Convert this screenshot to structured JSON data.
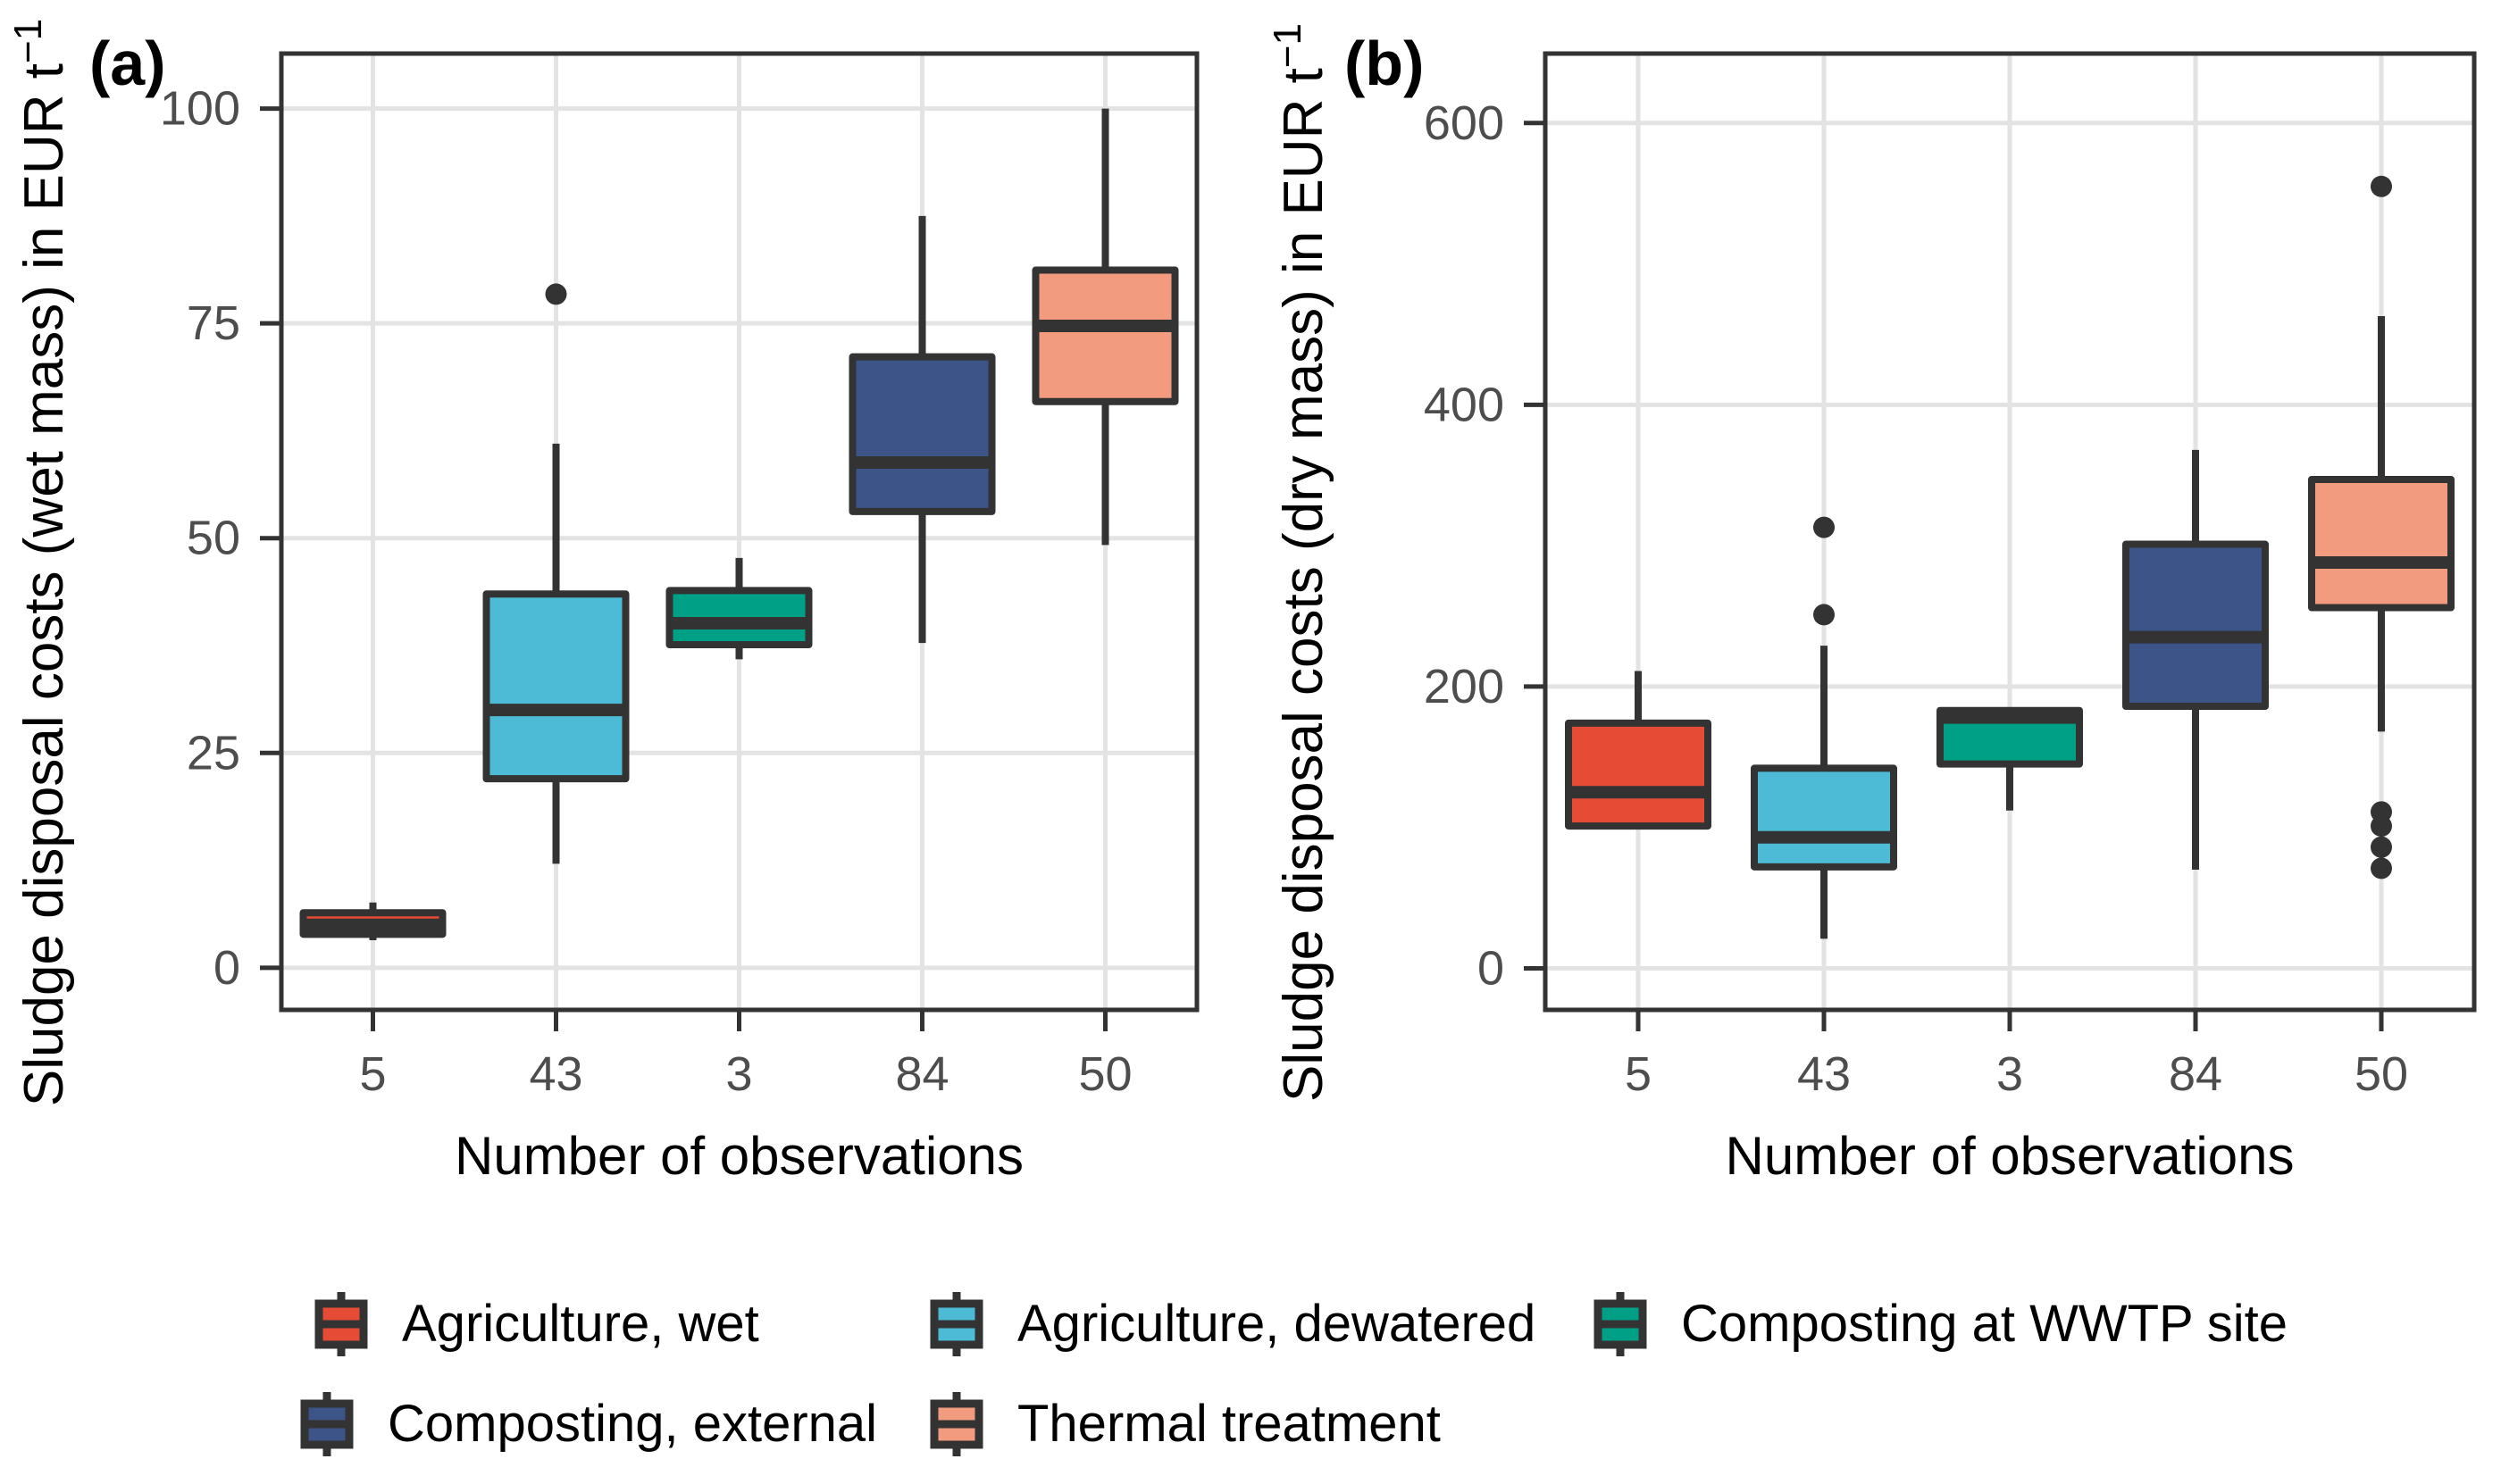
{
  "figure": {
    "background": "#FFFFFF"
  },
  "chart_data": [
    {
      "type": "boxplot",
      "panel_tag": "(a)",
      "xlabel": "Number of observations",
      "ylabel": "Sludge disposal costs (wet mass) in EUR t⁻¹",
      "ylabel_base": "Sludge disposal costs (wet mass) in EUR t",
      "ylabel_sup": "−1",
      "categories": [
        "5",
        "43",
        "3",
        "84",
        "50"
      ],
      "y_ticks": [
        0,
        25,
        50,
        75,
        100
      ],
      "ylim": [
        -4.9,
        106.4
      ],
      "grid": true,
      "series": [
        {
          "name": "Agriculture, wet",
          "color": "#E64B35",
          "low": 3.2,
          "q1": 3.9,
          "median": 5.0,
          "q3": 6.4,
          "high": 7.6,
          "outliers": []
        },
        {
          "name": "Agriculture, dewatered",
          "color": "#4DBBD5",
          "low": 12.1,
          "q1": 22.0,
          "median": 30.0,
          "q3": 43.5,
          "high": 61.0,
          "outliers": [
            78.4
          ]
        },
        {
          "name": "Composting at WWTP site",
          "color": "#00A087",
          "low": 35.9,
          "q1": 37.6,
          "median": 40.1,
          "q3": 43.9,
          "high": 47.7,
          "outliers": []
        },
        {
          "name": "Composting, external",
          "color": "#3C5488",
          "low": 37.8,
          "q1": 53.1,
          "median": 58.8,
          "q3": 71.1,
          "high": 87.5,
          "outliers": []
        },
        {
          "name": "Thermal treatment",
          "color": "#F39B7F",
          "low": 49.2,
          "q1": 65.9,
          "median": 74.7,
          "q3": 81.2,
          "high": 100.0,
          "outliers": []
        }
      ]
    },
    {
      "type": "boxplot",
      "panel_tag": "(b)",
      "xlabel": "Number of observations",
      "ylabel": "Sludge disposal costs (dry mass) in EUR t⁻¹",
      "ylabel_base": "Sludge disposal costs (dry mass) in EUR t",
      "ylabel_sup": "−1",
      "categories": [
        "5",
        "43",
        "3",
        "84",
        "50"
      ],
      "y_ticks": [
        0,
        200,
        400,
        600
      ],
      "ylim": [
        -29.5,
        649.3
      ],
      "grid": true,
      "series": [
        {
          "name": "Agriculture, wet",
          "color": "#E64B35",
          "low": 101,
          "q1": 101,
          "median": 125,
          "q3": 174,
          "high": 211,
          "outliers": []
        },
        {
          "name": "Agriculture, dewatered",
          "color": "#4DBBD5",
          "low": 21,
          "q1": 72,
          "median": 93,
          "q3": 142,
          "high": 229,
          "outliers": [
            251,
            313
          ]
        },
        {
          "name": "Composting at WWTP site",
          "color": "#00A087",
          "low": 112,
          "q1": 145,
          "median": 178,
          "q3": 183,
          "high": 184,
          "outliers": []
        },
        {
          "name": "Composting, external",
          "color": "#3C5488",
          "low": 70,
          "q1": 186,
          "median": 235,
          "q3": 301,
          "high": 368,
          "outliers": []
        },
        {
          "name": "Thermal treatment",
          "color": "#F39B7F",
          "low": 168,
          "q1": 256,
          "median": 288,
          "q3": 347,
          "high": 463,
          "outliers": [
            555,
            111,
            101,
            86,
            71
          ]
        }
      ]
    }
  ],
  "legend": {
    "items": [
      {
        "label": "Agriculture, wet",
        "color": "#E64B35"
      },
      {
        "label": "Agriculture, dewatered",
        "color": "#4DBBD5"
      },
      {
        "label": "Composting at WWTP site",
        "color": "#00A087"
      },
      {
        "label": "Composting, external",
        "color": "#3C5488"
      },
      {
        "label": "Thermal treatment",
        "color": "#F39B7F"
      }
    ]
  },
  "colors": {
    "stroke": "#333333",
    "grid": "#E3E3E3",
    "tick_label": "#4D4D4D",
    "text": "#000000",
    "background": "#FFFFFF",
    "outlier": "#333333"
  }
}
